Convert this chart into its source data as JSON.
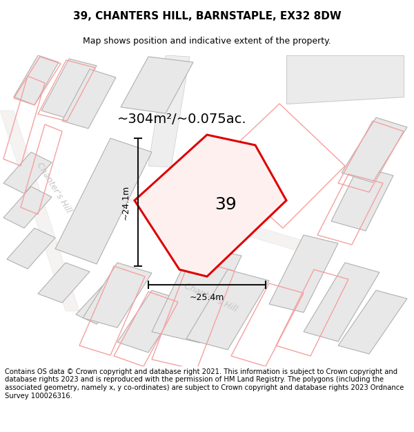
{
  "title": "39, CHANTERS HILL, BARNSTAPLE, EX32 8DW",
  "subtitle": "Map shows position and indicative extent of the property.",
  "area_text": "~304m²/~0.075ac.",
  "label_39": "39",
  "dim_height": "~24.1m",
  "dim_width": "~25.4m",
  "footer": "Contains OS data © Crown copyright and database right 2021. This information is subject to Crown copyright and database rights 2023 and is reproduced with the permission of HM Land Registry. The polygons (including the associated geometry, namely x, y co-ordinates) are subject to Crown copyright and database rights 2023 Ordnance Survey 100026316.",
  "map_bg": "#ffffff",
  "building_fill": "#e8e8e8",
  "building_edge": "#b0b0b0",
  "red_plot_color": "#dd0000",
  "pink_color": "#f5a0a0",
  "dim_line_color": "#111111",
  "street_label_color": "#c8c4c4",
  "title_fontsize": 11,
  "subtitle_fontsize": 9,
  "area_fontsize": 14,
  "label_fontsize": 18,
  "footer_fontsize": 7.2,
  "street_fontsize": 9,
  "dim_fontsize": 9
}
